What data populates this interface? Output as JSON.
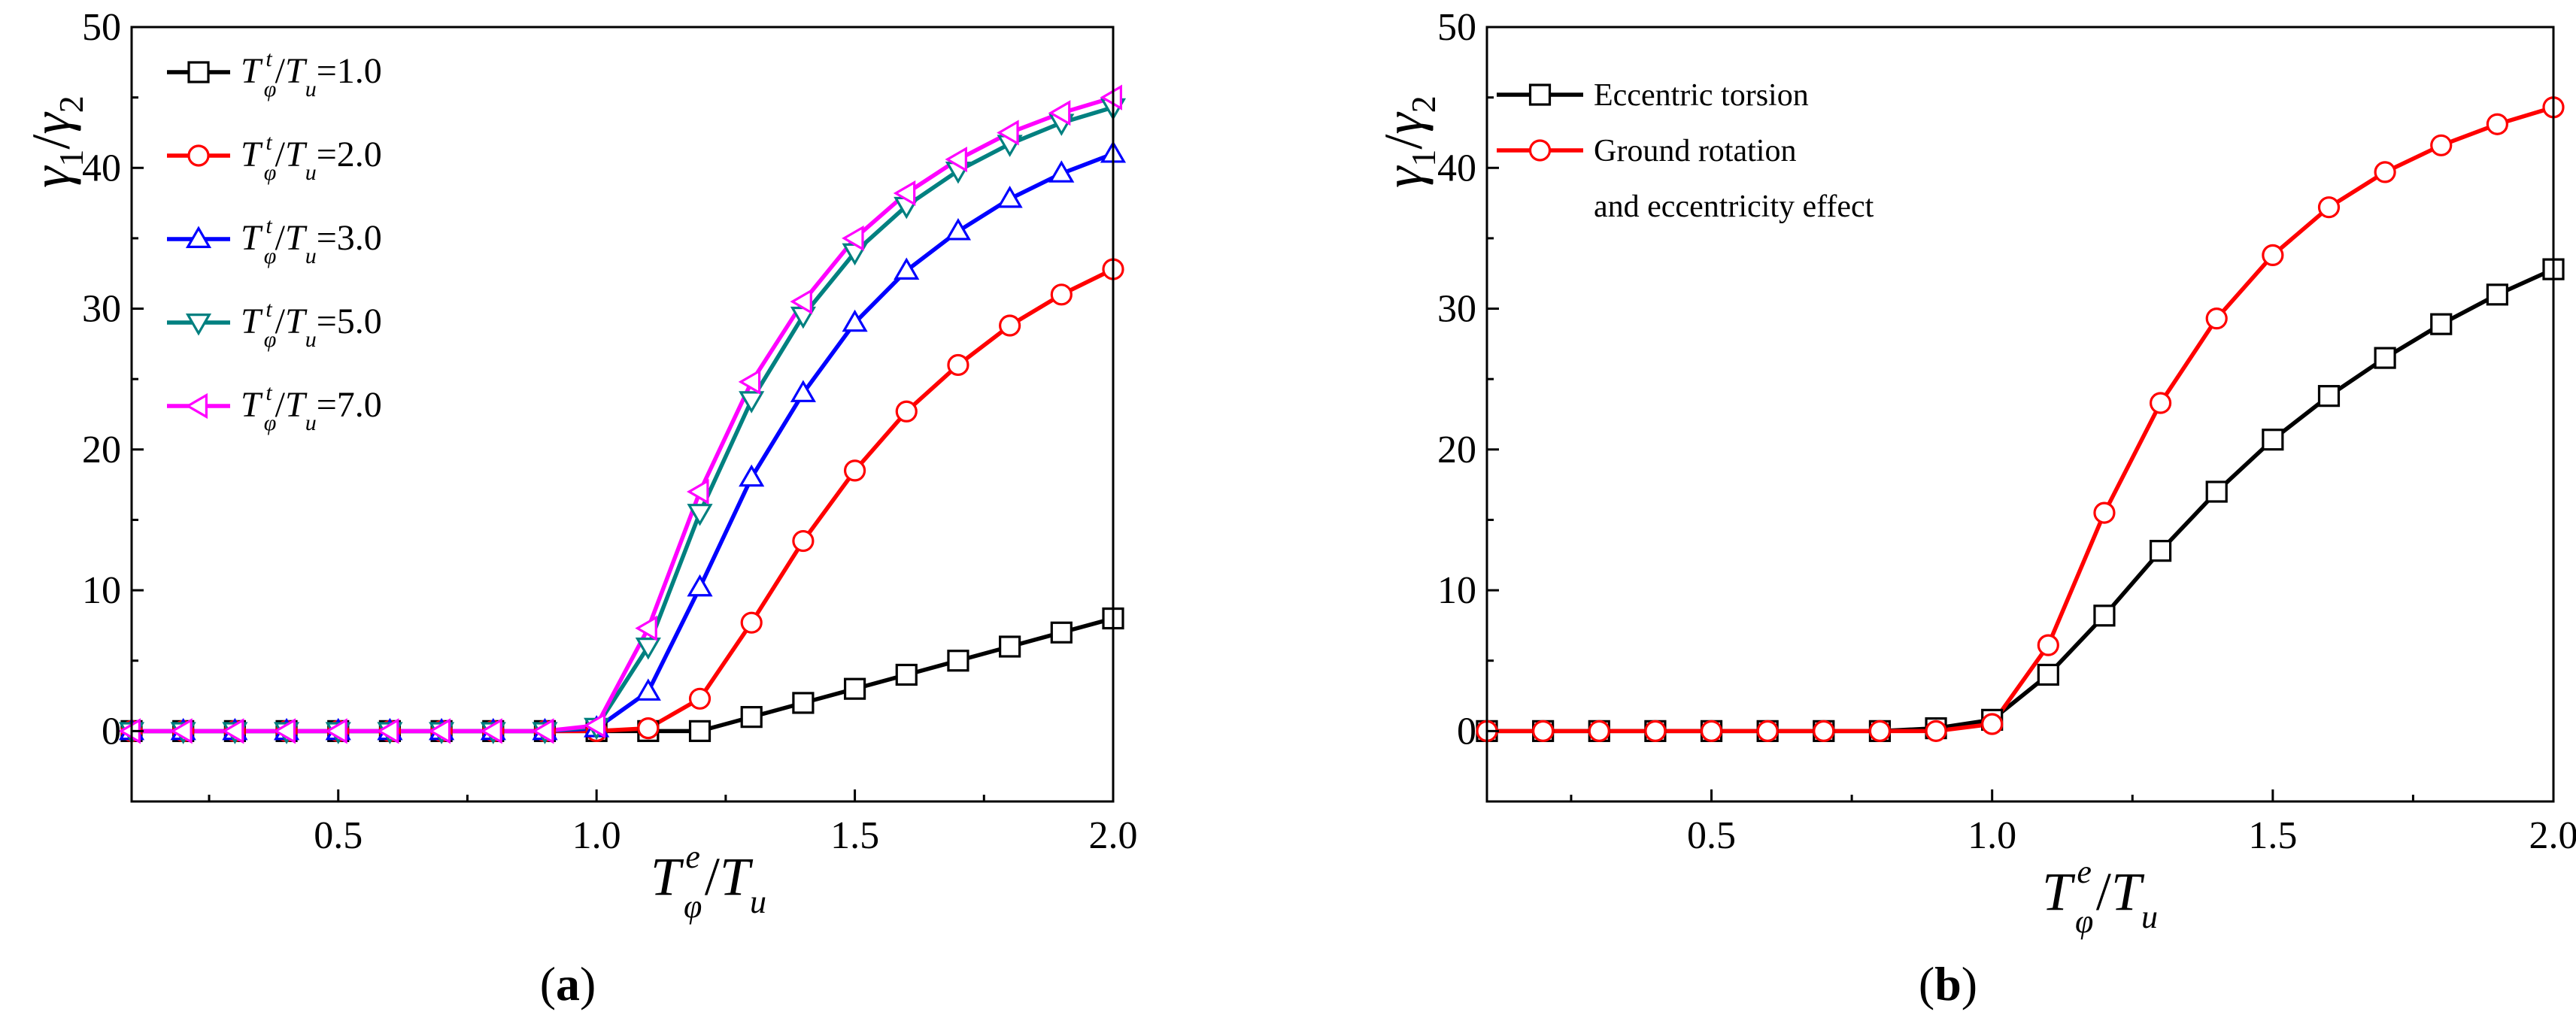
{
  "chart_data": [
    {
      "type": "line",
      "caption": "a",
      "x": [
        0.1,
        0.2,
        0.3,
        0.4,
        0.5,
        0.6,
        0.7,
        0.8,
        0.9,
        1.0,
        1.1,
        1.2,
        1.3,
        1.4,
        1.5,
        1.6,
        1.7,
        1.8,
        1.9,
        2.0
      ],
      "xlim": [
        0.1,
        2.0
      ],
      "ylim": [
        -5,
        50
      ],
      "xticks": [
        "0.5",
        "1.0",
        "1.5",
        "2.0"
      ],
      "yticks": [
        "0",
        "10",
        "20",
        "30",
        "40",
        "50"
      ],
      "xlabel": {
        "T": "T",
        "sub": "φ",
        "sup": "e",
        "slash": "/",
        "T2": "T",
        "sub2": "u"
      },
      "ylabel": {
        "g1": "γ",
        "s1": "1",
        "slash": "/",
        "g2": "γ",
        "s2": "2"
      },
      "series": [
        {
          "name_sup": "t",
          "name_val": "=1.0",
          "color": "#000000",
          "marker": "square",
          "values": [
            0,
            0,
            0,
            0,
            0,
            0,
            0,
            0,
            0,
            0,
            0,
            0,
            1.0,
            2.0,
            3.0,
            4.0,
            5.0,
            6.0,
            7.0,
            8.0
          ]
        },
        {
          "name_sup": "t",
          "name_val": "=2.0",
          "color": "#ff0000",
          "marker": "circle",
          "values": [
            0,
            0,
            0,
            0,
            0,
            0,
            0,
            0,
            0,
            0,
            0.2,
            2.3,
            7.7,
            13.5,
            18.5,
            22.7,
            26.0,
            28.8,
            31.0,
            32.8
          ]
        },
        {
          "name_sup": "t",
          "name_val": "=3.0",
          "color": "#0000ff",
          "marker": "triangle-up",
          "values": [
            0,
            0,
            0,
            0,
            0,
            0,
            0,
            0,
            0,
            0.2,
            2.8,
            10.2,
            18.0,
            24.0,
            29.0,
            32.7,
            35.5,
            37.8,
            39.6,
            41.0
          ]
        },
        {
          "name_sup": "t",
          "name_val": "=5.0",
          "color": "#008080",
          "marker": "triangle-down",
          "values": [
            0,
            0,
            0,
            0,
            0,
            0,
            0,
            0,
            0,
            0.3,
            6.0,
            15.5,
            23.5,
            29.5,
            34.0,
            37.3,
            39.8,
            41.7,
            43.2,
            44.3
          ]
        },
        {
          "name_sup": "t",
          "name_val": "=7.0",
          "color": "#ff00ff",
          "marker": "triangle-left",
          "values": [
            0,
            0,
            0,
            0,
            0,
            0,
            0,
            0,
            0,
            0.4,
            7.3,
            17.0,
            24.8,
            30.5,
            35.0,
            38.2,
            40.6,
            42.5,
            43.9,
            45.0
          ]
        }
      ]
    },
    {
      "type": "line",
      "caption": "b",
      "x": [
        0.1,
        0.2,
        0.3,
        0.4,
        0.5,
        0.6,
        0.7,
        0.8,
        0.9,
        1.0,
        1.1,
        1.2,
        1.3,
        1.4,
        1.5,
        1.6,
        1.7,
        1.8,
        1.9,
        2.0
      ],
      "xlim": [
        0.1,
        2.0
      ],
      "ylim": [
        -5,
        50
      ],
      "xticks": [
        "0.5",
        "1.0",
        "1.5",
        "2.0"
      ],
      "yticks": [
        "0",
        "10",
        "20",
        "30",
        "40",
        "50"
      ],
      "xlabel": {
        "T": "T",
        "sub": "φ",
        "sup": "e",
        "slash": "/",
        "T2": "T",
        "sub2": "u"
      },
      "ylabel": {
        "g1": "γ",
        "s1": "1",
        "slash": "/",
        "g2": "γ",
        "s2": "2"
      },
      "series": [
        {
          "name": "Eccentric torsion",
          "color": "#000000",
          "marker": "square",
          "values": [
            0,
            0,
            0,
            0,
            0,
            0,
            0,
            0,
            0.2,
            0.8,
            4.0,
            8.2,
            12.8,
            17.0,
            20.7,
            23.8,
            26.5,
            28.9,
            31.0,
            32.8
          ]
        },
        {
          "name": "Ground rotation",
          "name2": "and eccentricity effect",
          "color": "#ff0000",
          "marker": "circle",
          "values": [
            0,
            0,
            0,
            0,
            0,
            0,
            0,
            0,
            0,
            0.5,
            6.1,
            15.5,
            23.3,
            29.3,
            33.8,
            37.2,
            39.7,
            41.6,
            43.1,
            44.3
          ]
        }
      ]
    }
  ]
}
